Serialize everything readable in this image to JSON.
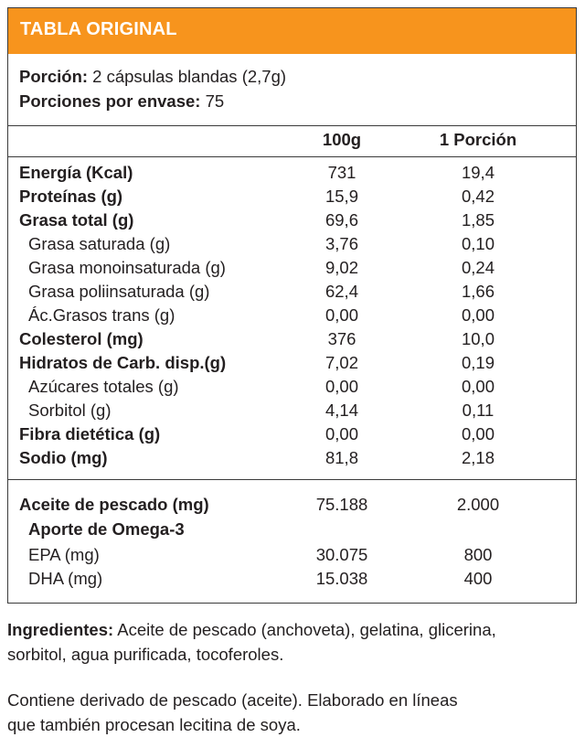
{
  "title": "TABLA ORIGINAL",
  "serving": {
    "portion_label": "Porción:",
    "portion_value": " 2 cápsulas blandas (2,7g)",
    "per_container_label": "Porciones por envase:",
    "per_container_value": " 75"
  },
  "columns": {
    "per100": "100g",
    "perPortion": "1 Porción"
  },
  "nutrients": [
    {
      "name": "Energía (Kcal)",
      "v100": "731",
      "vp": "19,4",
      "bold": true
    },
    {
      "name": "Proteínas (g)",
      "v100": "15,9",
      "vp": "0,42",
      "bold": true
    },
    {
      "name": "Grasa total (g)",
      "v100": "69,6",
      "vp": "1,85",
      "bold": true
    },
    {
      "name": "Grasa saturada (g)",
      "v100": "3,76",
      "vp": "0,10",
      "bold": false
    },
    {
      "name": "Grasa monoinsaturada (g)",
      "v100": "9,02",
      "vp": "0,24",
      "bold": false
    },
    {
      "name": "Grasa poliinsaturada (g)",
      "v100": "62,4",
      "vp": "1,66",
      "bold": false
    },
    {
      "name": "Ác.Grasos trans (g)",
      "v100": "0,00",
      "vp": "0,00",
      "bold": false
    },
    {
      "name": "Colesterol (mg)",
      "v100": "376",
      "vp": "10,0",
      "bold": true
    },
    {
      "name": "Hidratos de Carb. disp.(g)",
      "v100": "7,02",
      "vp": "0,19",
      "bold": true
    },
    {
      "name": "Azúcares totales (g)",
      "v100": "0,00",
      "vp": "0,00",
      "bold": false
    },
    {
      "name": "Sorbitol (g)",
      "v100": "4,14",
      "vp": "0,11",
      "bold": false
    },
    {
      "name": "Fibra dietética (g)",
      "v100": "0,00",
      "vp": "0,00",
      "bold": true
    },
    {
      "name": "Sodio (mg)",
      "v100": "81,8",
      "vp": "2,18",
      "bold": true
    }
  ],
  "fish_oil": {
    "name": "Aceite de pescado (mg)",
    "v100": "75.188",
    "vp": "2.000",
    "omega_heading": "Aporte de Omega-3",
    "items": [
      {
        "name": "EPA (mg)",
        "v100": "30.075",
        "vp": "800"
      },
      {
        "name": "DHA (mg)",
        "v100": "15.038",
        "vp": "400"
      }
    ]
  },
  "ingredients": {
    "label": "Ingredientes:",
    "line1": " Aceite de pescado (anchoveta), gelatina, glicerina,",
    "line2": "sorbitol, agua purificada, tocoferoles."
  },
  "allergen": {
    "line1": "Contiene derivado de pescado (aceite). Elaborado en líneas",
    "line2": "que también procesan lecitina de soya."
  }
}
